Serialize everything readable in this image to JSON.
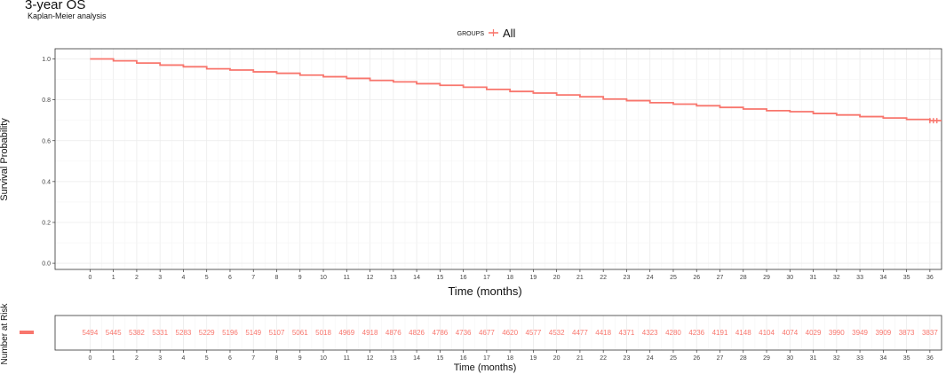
{
  "chart_data": {
    "type": "line",
    "title": "3-year OS",
    "subtitle": "Kaplan-Meier analysis",
    "xlabel": "Time (months)",
    "ylabel": "Survival Probability",
    "xlim": [
      -1.5,
      36.5
    ],
    "ylim": [
      -0.03,
      1.05
    ],
    "x_ticks": [
      0,
      1,
      2,
      3,
      4,
      5,
      6,
      7,
      8,
      9,
      10,
      11,
      12,
      13,
      14,
      15,
      16,
      17,
      18,
      19,
      20,
      21,
      22,
      23,
      24,
      25,
      26,
      27,
      28,
      29,
      30,
      31,
      32,
      33,
      34,
      35,
      36
    ],
    "y_ticks": [
      "0.0",
      "0.2",
      "0.4",
      "0.6",
      "0.8",
      "1.0"
    ],
    "grid": true,
    "legend": {
      "title": "GROUPS",
      "placement": "top"
    },
    "series": [
      {
        "name": "All",
        "color": "#f8766d",
        "x": [
          0,
          1,
          2,
          3,
          4,
          5,
          6,
          7,
          8,
          9,
          10,
          11,
          12,
          13,
          14,
          15,
          16,
          17,
          18,
          19,
          20,
          21,
          22,
          23,
          24,
          25,
          26,
          27,
          28,
          29,
          30,
          31,
          32,
          33,
          34,
          35,
          36
        ],
        "values": [
          1.0,
          0.991,
          0.98,
          0.97,
          0.962,
          0.952,
          0.946,
          0.937,
          0.93,
          0.921,
          0.913,
          0.905,
          0.895,
          0.888,
          0.879,
          0.871,
          0.862,
          0.851,
          0.841,
          0.833,
          0.824,
          0.815,
          0.804,
          0.796,
          0.786,
          0.779,
          0.771,
          0.763,
          0.755,
          0.747,
          0.742,
          0.733,
          0.726,
          0.718,
          0.711,
          0.704,
          0.698
        ]
      }
    ],
    "risk_table": {
      "title": "Number at Risk",
      "xlabel": "Time (months)",
      "counts": [
        5494,
        5445,
        5382,
        5331,
        5283,
        5229,
        5196,
        5149,
        5107,
        5061,
        5018,
        4969,
        4918,
        4876,
        4826,
        4786,
        4736,
        4677,
        4620,
        4577,
        4532,
        4477,
        4418,
        4371,
        4323,
        4280,
        4236,
        4191,
        4148,
        4104,
        4074,
        4029,
        3990,
        3949,
        3909,
        3873,
        3837
      ]
    }
  }
}
